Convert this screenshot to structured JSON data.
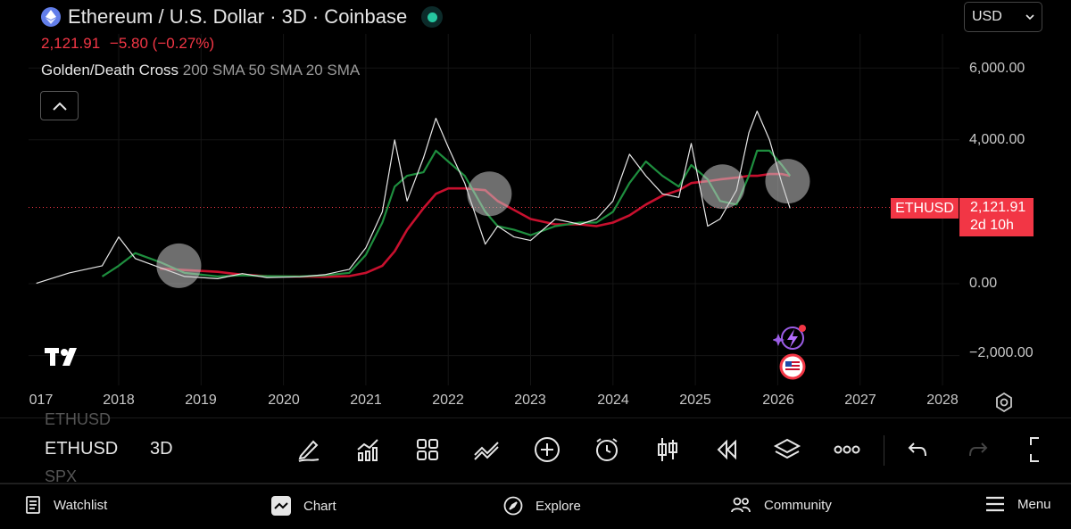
{
  "header": {
    "title": "Ethereum / U.S. Dollar · 3D · Coinbase",
    "price": "2,121.91",
    "change": "−5.80 (−0.27%)",
    "indicator_name": "Golden/Death Cross",
    "indicator_params": "200 SMA 50 SMA 20 SMA",
    "currency": "USD"
  },
  "axis": {
    "y_labels": [
      "6,000.00",
      "4,000.00",
      "0.00",
      "−2,000.00"
    ],
    "x_labels": [
      "017",
      "2018",
      "2019",
      "2020",
      "2021",
      "2022",
      "2023",
      "2024",
      "2025",
      "2026",
      "2027",
      "2028"
    ]
  },
  "price_tag": {
    "ticker": "ETHUSD",
    "price": "2,121.91",
    "countdown": "2d 10h"
  },
  "toolbar": {
    "symbol_prev": "ETHUSD",
    "symbol": "ETHUSD",
    "symbol_next": "SPX",
    "timeframe": "3D",
    "tools": [
      "pencil-draw",
      "indicators",
      "layouts",
      "trend-line",
      "add",
      "alert",
      "candles",
      "replay",
      "layers",
      "more",
      "undo",
      "redo",
      "fullscreen"
    ]
  },
  "nav": {
    "watchlist": "Watchlist",
    "chart": "Chart",
    "explore": "Explore",
    "community": "Community",
    "menu": "Menu"
  },
  "colors": {
    "background": "#000000",
    "price_red": "#f23645",
    "sma200": "#c8102e",
    "sma50": "#1e8e3e",
    "accent_green": "#26c6a0"
  },
  "chart_data": {
    "type": "line",
    "title": "Ethereum / U.S. Dollar · 3D · Coinbase",
    "ylim": [
      -2600,
      7000
    ],
    "y_ticks": [
      -2000,
      0,
      4000,
      6000
    ],
    "x_ticks": [
      "2018",
      "2019",
      "2020",
      "2021",
      "2022",
      "2023",
      "2024",
      "2025",
      "2026",
      "2027",
      "2028"
    ],
    "current_price": 2121.91,
    "grid": true,
    "x": [
      2017.0,
      2017.4,
      2017.8,
      2018.0,
      2018.2,
      2018.5,
      2018.8,
      2019.2,
      2019.5,
      2019.8,
      2020.2,
      2020.5,
      2020.8,
      2021.0,
      2021.2,
      2021.35,
      2021.5,
      2021.7,
      2021.85,
      2022.0,
      2022.2,
      2022.45,
      2022.6,
      2022.8,
      2023.0,
      2023.3,
      2023.6,
      2023.8,
      2024.0,
      2024.2,
      2024.4,
      2024.6,
      2024.8,
      2024.95,
      2025.15,
      2025.3,
      2025.5,
      2025.65,
      2025.75,
      2025.9,
      2026.05,
      2026.15
    ],
    "series": [
      {
        "values": [
          10,
          300,
          500,
          1300,
          700,
          450,
          200,
          140,
          280,
          170,
          190,
          250,
          400,
          1000,
          2000,
          4000,
          2300,
          3500,
          4600,
          3800,
          2800,
          1100,
          1600,
          1300,
          1200,
          1800,
          1650,
          1800,
          2300,
          3600,
          3000,
          2500,
          2400,
          3900,
          1600,
          1800,
          2600,
          4200,
          4800,
          4000,
          2800,
          2100
        ]
      },
      {
        "values": [
          null,
          null,
          null,
          null,
          null,
          420,
          380,
          330,
          250,
          210,
          200,
          190,
          210,
          300,
          500,
          900,
          1500,
          2100,
          2500,
          2650,
          2650,
          2600,
          2300,
          2050,
          1800,
          1650,
          1650,
          1600,
          1700,
          1900,
          2200,
          2450,
          2600,
          2800,
          2850,
          2900,
          2950,
          3000,
          3000,
          3050,
          3050,
          3000
        ]
      },
      {
        "values": [
          null,
          null,
          200,
          500,
          850,
          600,
          300,
          200,
          230,
          210,
          200,
          230,
          300,
          800,
          1700,
          2700,
          3000,
          3100,
          3700,
          3400,
          3000,
          2000,
          1600,
          1500,
          1350,
          1600,
          1700,
          1700,
          2000,
          2800,
          3400,
          3000,
          2700,
          3300,
          2900,
          2300,
          2200,
          3000,
          3700,
          3700,
          3300,
          3000
        ]
      }
    ],
    "annotations": [
      "circle highlight 2018-10",
      "circle highlight 2022-06",
      "circle highlight 2025-04",
      "circle highlight 2026-03"
    ]
  }
}
